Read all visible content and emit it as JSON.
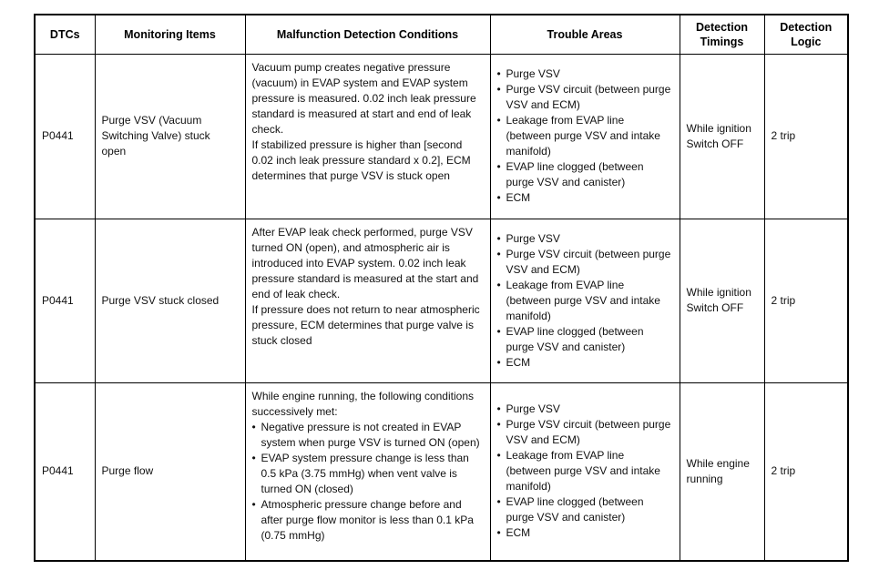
{
  "table": {
    "border_color": "#000000",
    "text_color": "#111111",
    "headers": [
      {
        "key": "dtcs",
        "label": "DTCs"
      },
      {
        "key": "monitoring-items",
        "label": "Monitoring Items"
      },
      {
        "key": "malfunction-detection-conditions",
        "label": "Malfunction Detection Conditions"
      },
      {
        "key": "trouble-areas",
        "label": "Trouble Areas"
      },
      {
        "key": "detection-timings",
        "label": "Detection Timings"
      },
      {
        "key": "detection-logic",
        "label": "Detection Logic"
      }
    ],
    "rows": [
      {
        "dtc": "P0441",
        "monitoring_item": "Purge VSV (Vacuum Switching Valve) stuck open",
        "malfunction_detection_conditions": [
          {
            "bullet": false,
            "text": "Vacuum pump creates negative pressure (vacuum) in EVAP system and EVAP system pressure is measured. 0.02 inch leak pressure standard is measured at start and end of leak check."
          },
          {
            "bullet": false,
            "text": "If stabilized pressure is higher than [second 0.02 inch leak pressure standard x 0.2], ECM determines that purge VSV is stuck open"
          }
        ],
        "trouble_areas": [
          "Purge VSV",
          "Purge VSV circuit (between purge VSV and ECM)",
          "Leakage from EVAP line (between purge VSV and intake manifold)",
          "EVAP line clogged (between purge VSV and canister)",
          "ECM"
        ],
        "detection_timing": "While ignition Switch OFF",
        "detection_logic": "2 trip"
      },
      {
        "dtc": "P0441",
        "monitoring_item": "Purge VSV stuck closed",
        "malfunction_detection_conditions": [
          {
            "bullet": false,
            "text": "After EVAP leak check performed, purge VSV turned ON (open), and atmospheric air is introduced into EVAP system. 0.02 inch leak pressure standard is measured at the start and end of leak check."
          },
          {
            "bullet": false,
            "text": "If pressure does not return to near atmospheric pressure, ECM determines that purge valve is stuck closed"
          }
        ],
        "trouble_areas": [
          "Purge VSV",
          "Purge VSV circuit (between purge VSV and ECM)",
          "Leakage from EVAP line (between purge VSV and intake manifold)",
          "EVAP line clogged (between purge VSV and canister)",
          "ECM"
        ],
        "detection_timing": "While ignition Switch OFF",
        "detection_logic": "2 trip"
      },
      {
        "dtc": "P0441",
        "monitoring_item": "Purge flow",
        "malfunction_detection_conditions": [
          {
            "bullet": false,
            "text": "While engine running, the following conditions successively met:"
          },
          {
            "bullet": true,
            "text": "Negative pressure is not created in EVAP system when purge VSV is turned ON (open)"
          },
          {
            "bullet": true,
            "text": "EVAP system pressure change is less than 0.5 kPa (3.75 mmHg) when vent valve is turned ON (closed)"
          },
          {
            "bullet": true,
            "text": "Atmospheric pressure change before and after purge flow monitor is less than 0.1 kPa (0.75 mmHg)"
          }
        ],
        "trouble_areas": [
          "Purge VSV",
          "Purge VSV circuit (between purge VSV and ECM)",
          "Leakage from EVAP line (between purge VSV and intake manifold)",
          "EVAP line clogged (between purge VSV and canister)",
          "ECM"
        ],
        "detection_timing": "While engine running",
        "detection_logic": "2 trip"
      }
    ]
  }
}
